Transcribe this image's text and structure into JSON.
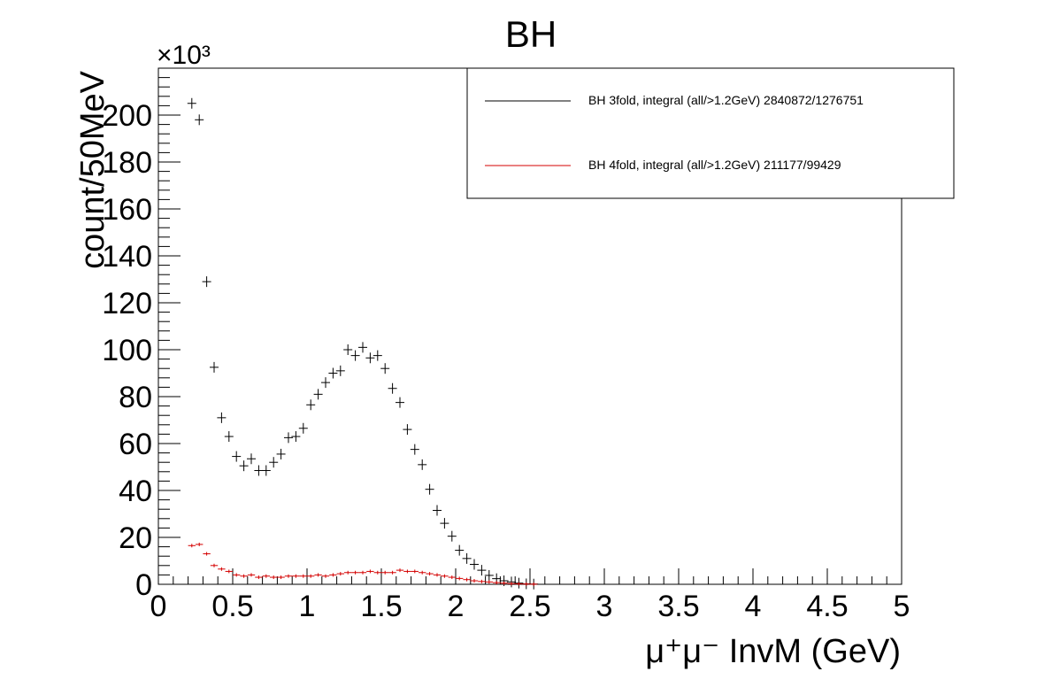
{
  "chart_data": {
    "type": "scatter",
    "title": "BH",
    "xlabel": "μ⁺μ⁻ InvM (GeV)",
    "ylabel": "count/50MeV",
    "y_multiplier_label": "×10³",
    "xlim": [
      0,
      5
    ],
    "ylim": [
      0,
      220
    ],
    "x_ticks": [
      0,
      0.5,
      1,
      1.5,
      2,
      2.5,
      3,
      3.5,
      4,
      4.5,
      5
    ],
    "x_tick_labels": [
      "0",
      "0.5",
      "1",
      "1.5",
      "2",
      "2.5",
      "3",
      "3.5",
      "4",
      "4.5",
      "5"
    ],
    "y_ticks": [
      0,
      20,
      40,
      60,
      80,
      100,
      120,
      140,
      160,
      180,
      200
    ],
    "y_tick_labels": [
      "0",
      "20",
      "40",
      "60",
      "80",
      "100",
      "120",
      "140",
      "160",
      "180",
      "200"
    ],
    "bin_width": 0.05,
    "grid": false,
    "legend_position": "top-right",
    "series": [
      {
        "name": "BH 3fold, integral (all/>1.2GeV) 2840872/1276751",
        "color": "#000000",
        "x": [
          0.225,
          0.275,
          0.325,
          0.375,
          0.425,
          0.475,
          0.525,
          0.575,
          0.625,
          0.675,
          0.725,
          0.775,
          0.825,
          0.875,
          0.925,
          0.975,
          1.025,
          1.075,
          1.125,
          1.175,
          1.225,
          1.275,
          1.325,
          1.375,
          1.425,
          1.475,
          1.525,
          1.575,
          1.625,
          1.675,
          1.725,
          1.775,
          1.825,
          1.875,
          1.925,
          1.975,
          2.025,
          2.075,
          2.125,
          2.175,
          2.225,
          2.275,
          2.325,
          2.375,
          2.425,
          2.475,
          2.525
        ],
        "y": [
          205,
          198,
          129,
          92.5,
          71,
          63,
          54.5,
          50.5,
          53.5,
          48.5,
          48.5,
          52,
          55.5,
          62.5,
          63,
          66.5,
          76.5,
          81,
          86,
          90,
          91,
          100,
          97.5,
          101,
          96.5,
          97.5,
          92,
          83.5,
          77.5,
          66,
          57.5,
          51,
          40.5,
          31.5,
          26,
          20.5,
          14.5,
          11,
          8.5,
          6,
          3.8,
          2.4,
          1.5,
          1,
          0.5,
          0.2,
          0.1
        ]
      },
      {
        "name": "BH 4fold, integral (all/>1.2GeV) 211177/99429",
        "color": "#d40000",
        "x": [
          0.225,
          0.275,
          0.325,
          0.375,
          0.425,
          0.475,
          0.525,
          0.575,
          0.625,
          0.675,
          0.725,
          0.775,
          0.825,
          0.875,
          0.925,
          0.975,
          1.025,
          1.075,
          1.125,
          1.175,
          1.225,
          1.275,
          1.325,
          1.375,
          1.425,
          1.475,
          1.525,
          1.575,
          1.625,
          1.675,
          1.725,
          1.775,
          1.825,
          1.875,
          1.925,
          1.975,
          2.025,
          2.075,
          2.125,
          2.175,
          2.225,
          2.275,
          2.325,
          2.375,
          2.425,
          2.475,
          2.525
        ],
        "y": [
          16.5,
          17,
          13,
          8,
          6.5,
          5.5,
          4,
          3.5,
          4,
          3,
          3.5,
          3,
          3,
          3.5,
          3.5,
          3.5,
          3.5,
          4,
          3.5,
          4,
          4.5,
          5,
          5,
          5,
          5.5,
          5,
          5,
          5,
          6,
          5.5,
          5.5,
          5,
          4.5,
          4,
          3.5,
          3,
          2.5,
          2,
          1.5,
          1.2,
          1,
          0.7,
          0.5,
          0.3,
          0.2,
          0.1,
          0.05
        ]
      }
    ]
  }
}
